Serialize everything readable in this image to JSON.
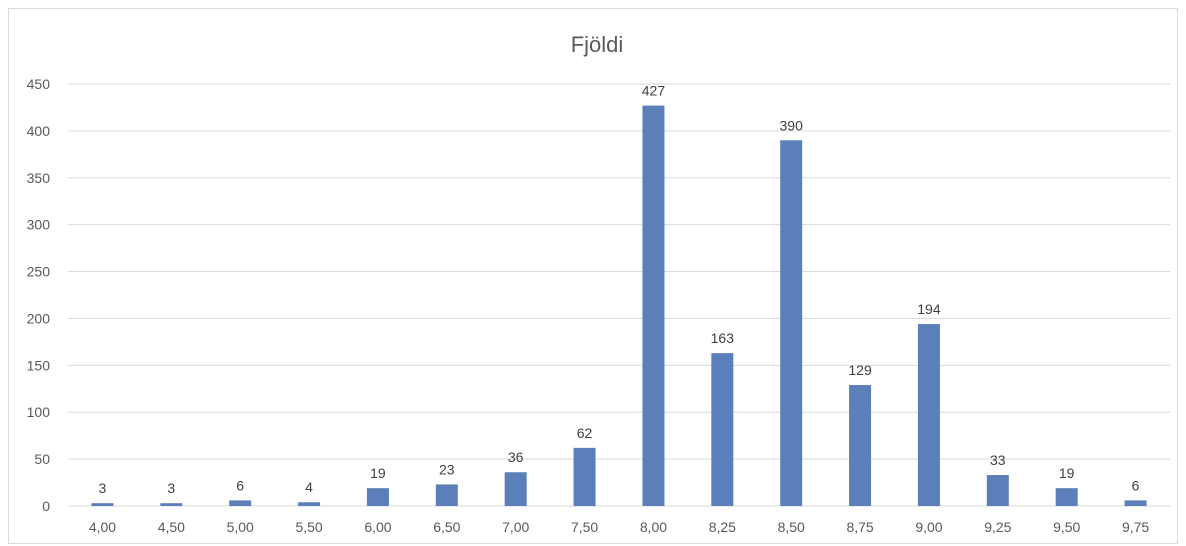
{
  "chart_data": {
    "type": "bar",
    "title": "Fjöldi",
    "xlabel": "",
    "ylabel": "",
    "categories": [
      "4,00",
      "4,50",
      "5,00",
      "5,50",
      "6,00",
      "6,50",
      "7,00",
      "7,50",
      "8,00",
      "8,25",
      "8,50",
      "8,75",
      "9,00",
      "9,25",
      "9,50",
      "9,75"
    ],
    "values": [
      3,
      3,
      6,
      4,
      19,
      23,
      36,
      62,
      427,
      163,
      390,
      129,
      194,
      33,
      19,
      6
    ],
    "ylim": [
      0,
      450
    ],
    "yticks": [
      0,
      50,
      100,
      150,
      200,
      250,
      300,
      350,
      400,
      450
    ],
    "grid": true,
    "data_labels": true,
    "colors": {
      "bar": "#5b7fb8",
      "grid": "#d9d9d9",
      "text": "#595959"
    }
  }
}
